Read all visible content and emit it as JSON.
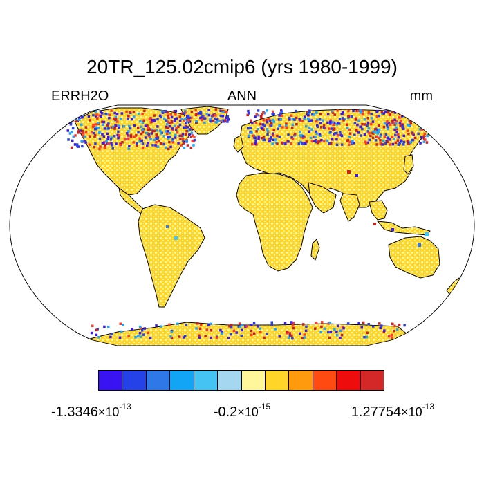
{
  "title": "20TR_125.02cmip6 (yrs 1980-1999)",
  "subtitle": {
    "left": "ERRH2O",
    "center": "ANN",
    "right": "mm"
  },
  "map": {
    "projection": "robinson",
    "land_fill_dominant": "#ffd700",
    "land_fill_secondary": "#fff7a0",
    "ocean_fill": "#ffffff",
    "coastline_color": "#000000",
    "high_latitude_anomaly_colors": [
      "#3a19f2",
      "#2642e6",
      "#cc1f1f",
      "#ff3a2a",
      "#1da5ff"
    ]
  },
  "colorbar": {
    "colors": [
      "#3a13f2",
      "#2542e8",
      "#2f78e8",
      "#12a5f5",
      "#45c3f2",
      "#a5d8f0",
      "#fff59a",
      "#ffd52a",
      "#ff9a0e",
      "#ff4a12",
      "#ee0c0c",
      "#d42828"
    ],
    "labels": {
      "left": {
        "mantissa": "-1.3346",
        "times": "×10",
        "exponent": "-13"
      },
      "center": {
        "mantissa": "-0.2",
        "times": "×10",
        "exponent": "-15"
      },
      "right": {
        "mantissa": "1.27754",
        "times": "×10",
        "exponent": "-13"
      }
    }
  }
}
